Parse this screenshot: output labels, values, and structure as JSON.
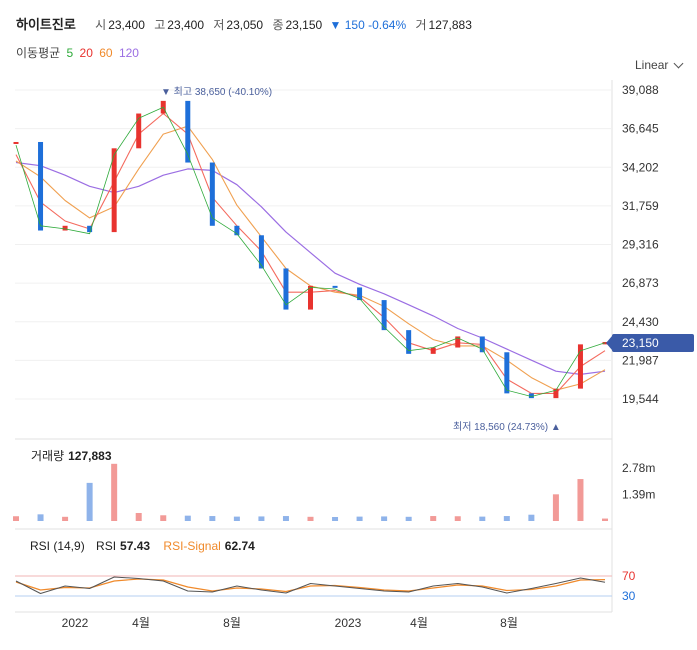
{
  "header": {
    "name": "하이트진로",
    "open_label": "시",
    "open": "23,400",
    "high_label": "고",
    "high": "23,400",
    "low_label": "저",
    "low": "23,050",
    "close_label": "종",
    "close": "23,150",
    "change": "▼ 150 -0.64%",
    "volume_label": "거",
    "volume": "127,883"
  },
  "ma_legend": {
    "label": "이동평균",
    "p5": "5",
    "p20": "20",
    "p60": "60",
    "p120": "120"
  },
  "scale_select": "Linear",
  "annotations": {
    "high": "▼ 최고 38,650 (-40.10%)",
    "low": "최저 18,560 (24.73%) ▲"
  },
  "price_tag": "23,150",
  "volume_panel": {
    "label": "거래량",
    "value": "127,883",
    "ticks": [
      "2.78m",
      "1.39m"
    ]
  },
  "rsi_panel": {
    "label": "RSI (14,9)",
    "rsi_label": "RSI",
    "rsi_value": "57.43",
    "signal_label": "RSI-Signal",
    "signal_value": "62.74",
    "levels": [
      "70",
      "30"
    ]
  },
  "colors": {
    "up": "#e8332f",
    "down": "#1e6fd9",
    "ma5": "#f46a5e",
    "ma20": "#f0a050",
    "ma60": "#b9b0e8",
    "ma120": "#9b6ee3",
    "tag": "#3a5aa8",
    "rsi": "#555555",
    "signal": "#f08a2b"
  },
  "chart_data": [
    {
      "type": "line",
      "title": "하이트진로",
      "y_ticks": [
        "39,088",
        "36,645",
        "34,202",
        "31,759",
        "29,316",
        "26,873",
        "24,430",
        "21,987",
        "19,544"
      ],
      "ylim": [
        18000,
        40000
      ],
      "x_ticks": [
        "2022",
        "4월",
        "8월",
        "2023",
        "4월",
        "8월"
      ],
      "x": [
        "2021-12",
        "2022-01",
        "2022-02",
        "2022-03",
        "2022-04",
        "2022-05",
        "2022-06",
        "2022-07",
        "2022-08",
        "2022-09",
        "2022-10",
        "2022-11",
        "2022-12",
        "2023-01",
        "2023-02",
        "2023-03",
        "2023-04",
        "2023-05",
        "2023-06",
        "2023-07",
        "2023-08",
        "2023-09",
        "2023-10",
        "2023-11",
        "2023-12"
      ],
      "series": [
        {
          "name": "종가",
          "values": [
            35800,
            30200,
            30500,
            30100,
            35400,
            37600,
            38400,
            34500,
            30500,
            29900,
            27800,
            25200,
            26700,
            26600,
            25800,
            23900,
            22400,
            22800,
            23500,
            22500,
            19900,
            19600,
            20200,
            23000,
            23150
          ]
        },
        {
          "name": "5",
          "values": [
            35600,
            30500,
            30300,
            30000,
            35000,
            37300,
            38000,
            35000,
            31000,
            30000,
            28000,
            25500,
            26600,
            26500,
            25900,
            24100,
            22600,
            22800,
            23400,
            22700,
            20100,
            19700,
            20100,
            22600,
            23100
          ]
        },
        {
          "name": "20",
          "values": [
            35000,
            32000,
            30800,
            30300,
            33300,
            36300,
            37600,
            36300,
            32300,
            30500,
            28900,
            26300,
            26300,
            26400,
            26000,
            24700,
            23100,
            22600,
            23100,
            23000,
            20800,
            19900,
            19900,
            21600,
            22600
          ]
        },
        {
          "name": "60",
          "values": [
            34600,
            33600,
            32100,
            31000,
            31700,
            34100,
            36300,
            36800,
            34700,
            31800,
            29800,
            27800,
            26700,
            26300,
            26100,
            25400,
            24300,
            23300,
            22900,
            22900,
            22000,
            20900,
            20100,
            20500,
            21400
          ]
        },
        {
          "name": "120",
          "values": [
            34500,
            34300,
            33700,
            33000,
            32600,
            33000,
            33700,
            34100,
            34000,
            33100,
            31700,
            30100,
            28800,
            27500,
            26800,
            26200,
            25500,
            24800,
            24000,
            23400,
            22700,
            22000,
            21300,
            21100,
            21300
          ]
        }
      ]
    },
    {
      "type": "bar",
      "title": "거래량",
      "y_ticks": [
        "2.78m",
        "1.39m"
      ],
      "ylim": [
        0,
        3200000
      ],
      "x": [
        "2021-12",
        "2022-01",
        "2022-02",
        "2022-03",
        "2022-04",
        "2022-05",
        "2022-06",
        "2022-07",
        "2022-08",
        "2022-09",
        "2022-10",
        "2022-11",
        "2022-12",
        "2023-01",
        "2023-02",
        "2023-03",
        "2023-04",
        "2023-05",
        "2023-06",
        "2023-07",
        "2023-08",
        "2023-09",
        "2023-10",
        "2023-11",
        "2023-12"
      ],
      "values": [
        250000,
        350000,
        220000,
        2000000,
        3000000,
        420000,
        300000,
        280000,
        260000,
        230000,
        240000,
        260000,
        220000,
        210000,
        230000,
        240000,
        220000,
        260000,
        250000,
        230000,
        260000,
        330000,
        1400000,
        2200000,
        127883
      ]
    },
    {
      "type": "line",
      "title": "RSI (14,9)",
      "y_ticks": [
        "70",
        "30"
      ],
      "ylim": [
        0,
        100
      ],
      "x": [
        "2021-12",
        "2022-01",
        "2022-02",
        "2022-03",
        "2022-04",
        "2022-05",
        "2022-06",
        "2022-07",
        "2022-08",
        "2022-09",
        "2022-10",
        "2022-11",
        "2022-12",
        "2023-01",
        "2023-02",
        "2023-03",
        "2023-04",
        "2023-05",
        "2023-06",
        "2023-07",
        "2023-08",
        "2023-09",
        "2023-10",
        "2023-11",
        "2023-12"
      ],
      "series": [
        {
          "name": "RSI",
          "values": [
            60,
            35,
            50,
            45,
            68,
            65,
            60,
            40,
            38,
            50,
            42,
            36,
            55,
            50,
            45,
            40,
            38,
            50,
            55,
            48,
            36,
            45,
            55,
            66,
            57.43
          ]
        },
        {
          "name": "RSI-Signal",
          "values": [
            58,
            42,
            47,
            46,
            60,
            64,
            62,
            48,
            40,
            46,
            44,
            39,
            50,
            51,
            47,
            42,
            40,
            46,
            52,
            50,
            41,
            43,
            50,
            62,
            62.74
          ]
        }
      ]
    }
  ]
}
